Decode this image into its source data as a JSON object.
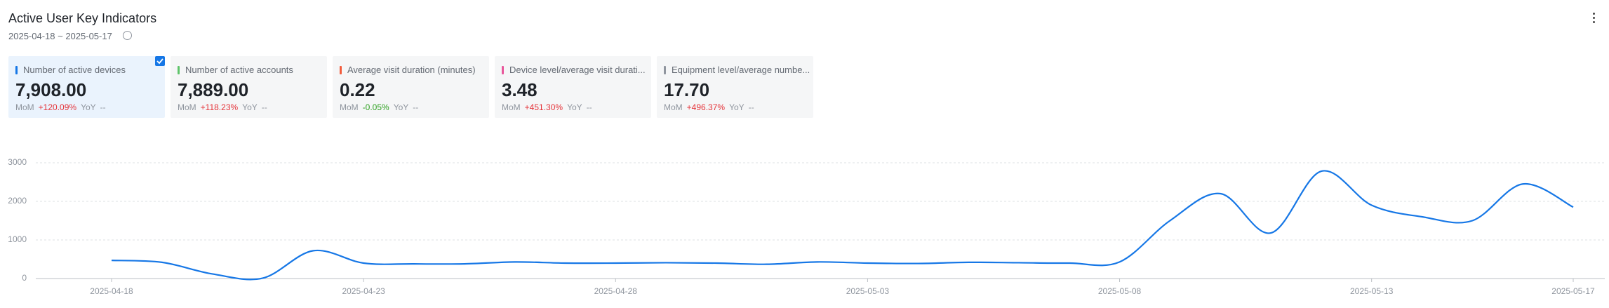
{
  "header": {
    "title": "Active User Key Indicators",
    "date_range": "2025-04-18 ~ 2025-05-17"
  },
  "cards": [
    {
      "label": "Number of active devices",
      "value": "7,908.00",
      "mom_label": "MoM",
      "mom": "+120.09%",
      "yoy_label": "YoY",
      "yoy": "--"
    },
    {
      "label": "Number of active accounts",
      "value": "7,889.00",
      "mom_label": "MoM",
      "mom": "+118.23%",
      "yoy_label": "YoY",
      "yoy": "--"
    },
    {
      "label": "Average visit duration (minutes)",
      "value": "0.22",
      "mom_label": "MoM",
      "mom": "-0.05%",
      "yoy_label": "YoY",
      "yoy": "--"
    },
    {
      "label": "Device level/average visit durati...",
      "value": "3.48",
      "mom_label": "MoM",
      "mom": "+451.30%",
      "yoy_label": "YoY",
      "yoy": "--"
    },
    {
      "label": "Equipment level/average numbe...",
      "value": "17.70",
      "mom_label": "MoM",
      "mom": "+496.37%",
      "yoy_label": "YoY",
      "yoy": "--"
    }
  ],
  "chart_data": {
    "type": "line",
    "x": [
      "2025-04-18",
      "2025-04-19",
      "2025-04-20",
      "2025-04-21",
      "2025-04-22",
      "2025-04-23",
      "2025-04-24",
      "2025-04-25",
      "2025-04-26",
      "2025-04-27",
      "2025-04-28",
      "2025-04-29",
      "2025-04-30",
      "2025-05-01",
      "2025-05-02",
      "2025-05-03",
      "2025-05-04",
      "2025-05-05",
      "2025-05-06",
      "2025-05-07",
      "2025-05-08",
      "2025-05-09",
      "2025-05-10",
      "2025-05-11",
      "2025-05-12",
      "2025-05-13",
      "2025-05-14",
      "2025-05-15",
      "2025-05-16",
      "2025-05-17"
    ],
    "values": [
      470,
      420,
      120,
      10,
      720,
      400,
      380,
      380,
      430,
      400,
      400,
      410,
      400,
      370,
      430,
      400,
      390,
      420,
      410,
      400,
      430,
      1500,
      2200,
      1180,
      2780,
      1900,
      1600,
      1500,
      2450,
      1850
    ],
    "color": "#1677e6",
    "ylim": [
      0,
      3000
    ],
    "yticks": [
      0,
      1000,
      2000,
      3000
    ],
    "grid": true
  }
}
